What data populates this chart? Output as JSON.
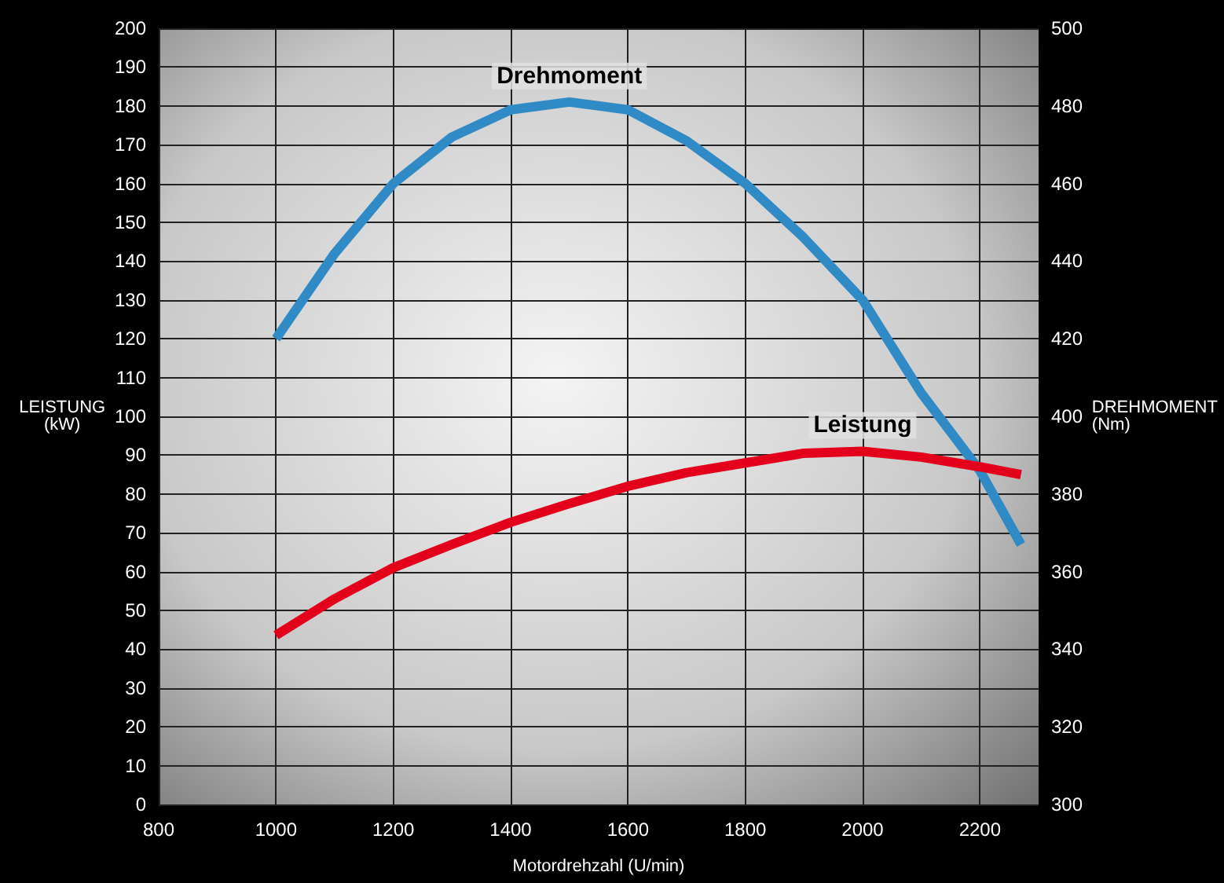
{
  "chart_data": {
    "type": "line",
    "xlabel": "Motordrehzahl (U/min)",
    "ylabel": "LEISTUNG (kW)",
    "y2label": "DREHMOMENT (Nm)",
    "x": [
      1000,
      1100,
      1200,
      1300,
      1400,
      1500,
      1600,
      1700,
      1800,
      1900,
      2000,
      2100,
      2200,
      2270
    ],
    "series": [
      {
        "name": "Drehmoment",
        "color": "#2f8ac6",
        "axis": "y2",
        "values": [
          420,
          442,
          460,
          472,
          479,
          481,
          479,
          471,
          460,
          446,
          430,
          406,
          386,
          367
        ]
      },
      {
        "name": "Leistung",
        "color": "#e3001b",
        "values": [
          43.6,
          53,
          61,
          67,
          72.7,
          77.5,
          82,
          85.5,
          88,
          90.5,
          91,
          89.5,
          87,
          85
        ]
      }
    ],
    "xlim": [
      800,
      2300
    ],
    "xticks": [
      800,
      1000,
      1200,
      1400,
      1600,
      1800,
      2000,
      2200
    ],
    "ylim": [
      0,
      200
    ],
    "yticks": [
      0,
      10,
      20,
      30,
      40,
      50,
      60,
      70,
      80,
      90,
      100,
      110,
      120,
      130,
      140,
      150,
      160,
      170,
      180,
      190,
      200
    ],
    "y2lim": [
      300,
      500
    ],
    "y2ticks": [
      300,
      320,
      340,
      360,
      380,
      400,
      420,
      440,
      460,
      480,
      500
    ],
    "grid": true,
    "legend": false,
    "marker": "none",
    "line_style": "solid"
  }
}
